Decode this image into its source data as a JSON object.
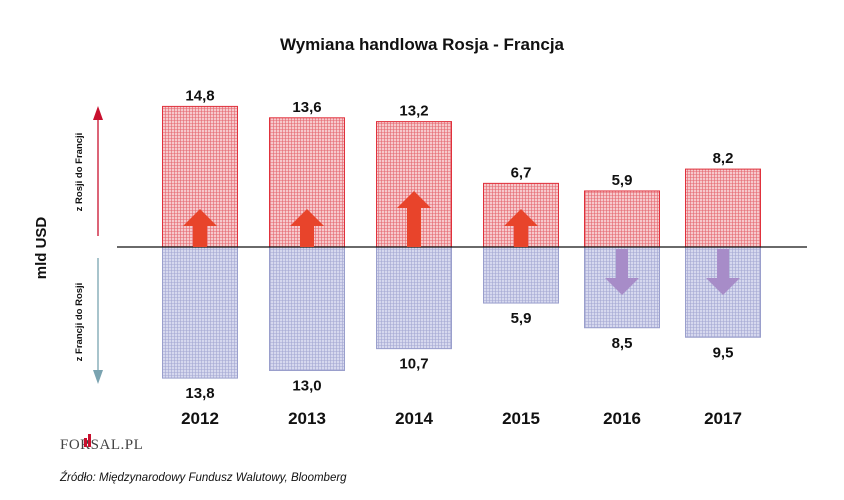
{
  "chart_data": {
    "type": "bar",
    "title": "Wymiana handlowa Rosja - Francja",
    "ylabel": "mld USD",
    "categories": [
      "2012",
      "2013",
      "2014",
      "2015",
      "2016",
      "2017"
    ],
    "series": [
      {
        "name": "z Rosji do Francji",
        "values": [
          14.8,
          13.6,
          13.2,
          6.7,
          5.9,
          8.2
        ],
        "labels": [
          "14,8",
          "13,6",
          "13,2",
          "6,7",
          "5,9",
          "8,2"
        ],
        "direction": "up"
      },
      {
        "name": "z Francji do Rosji",
        "values": [
          13.8,
          13.0,
          10.7,
          5.9,
          8.5,
          9.5
        ],
        "labels": [
          "13,8",
          "13,0",
          "10,7",
          "5,9",
          "8,5",
          "9,5"
        ],
        "direction": "down"
      }
    ],
    "trend_arrows": [
      "up",
      "up",
      "up",
      "up",
      "down",
      "down"
    ],
    "colors": {
      "up_fill": "#f2b3b8",
      "up_stroke": "#e0313c",
      "down_fill": "#c3c6e2",
      "down_stroke": "#9a9fcc",
      "arrow_up": "#e8442b",
      "arrow_down": "#a78cc8",
      "axis_up": "#c8102e",
      "axis_down": "#7aa3b0"
    }
  },
  "logo": "FORSAL.PL",
  "source": "Źródło: Międzynarodowy Fundusz Walutowy, Bloomberg"
}
